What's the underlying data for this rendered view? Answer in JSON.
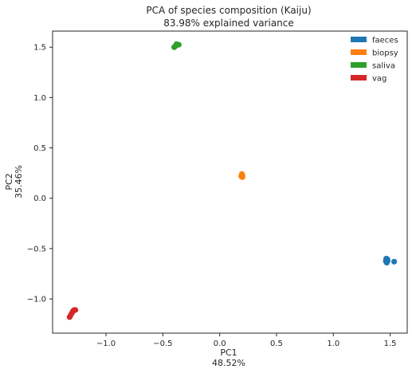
{
  "chart_data": {
    "type": "scatter",
    "title": "PCA of species composition (Kaiju)",
    "subtitle": "83.98% explained variance",
    "xlabel": "PC1",
    "xlabel_sub": "48.52%",
    "ylabel": "PC2",
    "ylabel_sub": "35.46%",
    "xlim": [
      -1.47,
      1.65
    ],
    "ylim": [
      -1.34,
      1.66
    ],
    "xticks": [
      -1.0,
      -0.5,
      0.0,
      0.5,
      1.0,
      1.5
    ],
    "xtick_labels": [
      "−1.0",
      "−0.5",
      "0.0",
      "0.5",
      "1.0",
      "1.5"
    ],
    "yticks": [
      -1.0,
      -0.5,
      0.0,
      0.5,
      1.0,
      1.5
    ],
    "ytick_labels": [
      "−1.0",
      "−0.5",
      "0.0",
      "0.5",
      "1.0",
      "1.5"
    ],
    "grid": false,
    "legend_position": "top-right",
    "series": [
      {
        "name": "faeces",
        "color": "#1f77b4",
        "points": [
          {
            "x": 1.465,
            "y": -0.6
          },
          {
            "x": 1.475,
            "y": -0.605
          },
          {
            "x": 1.47,
            "y": -0.615
          },
          {
            "x": 1.462,
            "y": -0.625
          },
          {
            "x": 1.478,
            "y": -0.62
          },
          {
            "x": 1.47,
            "y": -0.64
          },
          {
            "x": 1.535,
            "y": -0.63
          }
        ]
      },
      {
        "name": "biopsy",
        "color": "#ff7f0e",
        "points": [
          {
            "x": 0.195,
            "y": 0.24
          },
          {
            "x": 0.2,
            "y": 0.23
          },
          {
            "x": 0.19,
            "y": 0.22
          },
          {
            "x": 0.2,
            "y": 0.21
          },
          {
            "x": 0.192,
            "y": 0.215
          }
        ]
      },
      {
        "name": "saliva",
        "color": "#2ca02c",
        "points": [
          {
            "x": -0.4,
            "y": 1.5
          },
          {
            "x": -0.39,
            "y": 1.51
          },
          {
            "x": -0.38,
            "y": 1.52
          },
          {
            "x": -0.37,
            "y": 1.525
          },
          {
            "x": -0.36,
            "y": 1.525
          },
          {
            "x": -0.38,
            "y": 1.53
          }
        ]
      },
      {
        "name": "vag",
        "color": "#d62728",
        "points": [
          {
            "x": -1.32,
            "y": -1.18
          },
          {
            "x": -1.31,
            "y": -1.16
          },
          {
            "x": -1.3,
            "y": -1.14
          },
          {
            "x": -1.29,
            "y": -1.12
          },
          {
            "x": -1.28,
            "y": -1.11
          },
          {
            "x": -1.27,
            "y": -1.11
          }
        ]
      }
    ]
  }
}
